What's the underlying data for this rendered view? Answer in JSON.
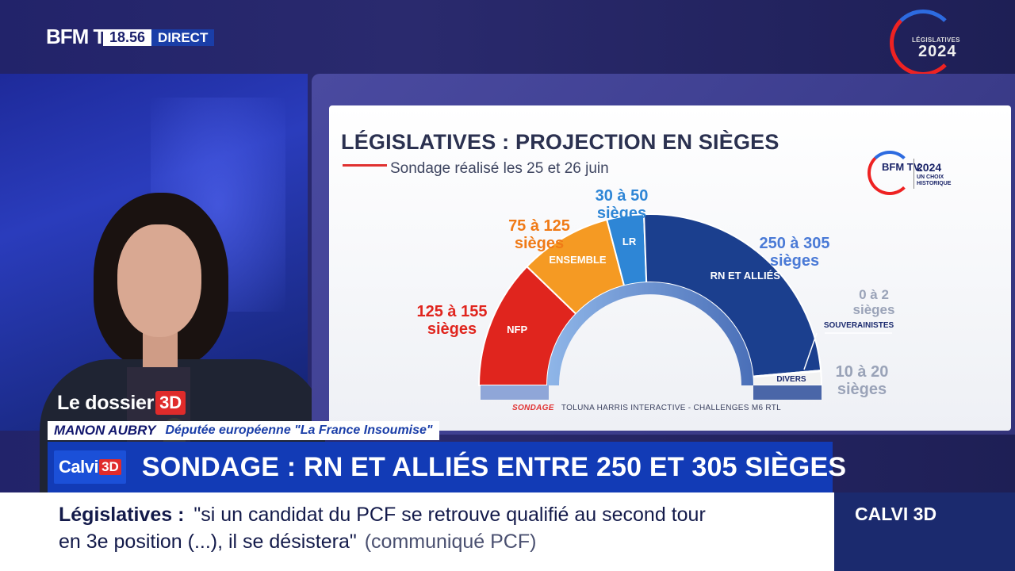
{
  "channel": {
    "logo": "BFM TV.",
    "time": "18.56",
    "live": "DIRECT",
    "elections_small": "LÉGISLATIVES",
    "elections_year": "2024"
  },
  "chart_card": {
    "title": "LÉGISLATIVES : PROJECTION EN SIÈGES",
    "subtitle": "Sondage réalisé les 25 et 26 juin",
    "badge_logo": "BFM TV.",
    "badge_year": "2024",
    "badge_caption": "UN CHOIX HISTORIQUE",
    "source_label": "SONDAGE",
    "source_text": "TOLUNA HARRIS INTERACTIVE - CHALLENGES M6 RTL"
  },
  "chart_data": {
    "type": "pie",
    "variant": "hemicycle",
    "title": "LÉGISLATIVES : PROJECTION EN SIÈGES",
    "subtitle": "Sondage réalisé les 25 et 26 juin",
    "series": [
      {
        "name": "NFP",
        "range_label_a": "125 à 155",
        "range_label_b": "sièges",
        "min": 125,
        "max": 155,
        "color": "#e0251e"
      },
      {
        "name": "ENSEMBLE",
        "range_label_a": "75 à 125",
        "range_label_b": "sièges",
        "min": 75,
        "max": 125,
        "color": "#f59a23"
      },
      {
        "name": "LR",
        "range_label_a": "30 à 50",
        "range_label_b": "sièges",
        "min": 30,
        "max": 50,
        "color": "#2e86d6"
      },
      {
        "name": "RN ET ALLIÉS",
        "range_label_a": "250 à 305",
        "range_label_b": "sièges",
        "min": 250,
        "max": 305,
        "color": "#1b3f8e"
      },
      {
        "name": "SOUVERAINISTES",
        "range_label_a": "0 à 2",
        "range_label_b": "sièges",
        "min": 0,
        "max": 2,
        "color": "#1b3f8e"
      },
      {
        "name": "DIVERS",
        "range_label_a": "10 à 20",
        "range_label_b": "sièges",
        "min": 10,
        "max": 20,
        "color": "#f2f2f2"
      }
    ]
  },
  "lower_third": {
    "dossier": "Le dossier",
    "dossier_3d": "3D",
    "name": "MANON AUBRY",
    "role": "Députée européenne \"La France Insoumise\"",
    "show": "Calvi",
    "show_3d": "3D",
    "headline": "SONDAGE : RN ET ALLIÉS ENTRE 250 ET 305 SIÈGES"
  },
  "ticker": {
    "topic": "Législatives :",
    "line1": "\"si un candidat du PCF se retrouve qualifié au second tour",
    "line2": "en 3e position (...), il se désistera\"",
    "source": "(communiqué PCF)",
    "program": "CALVI 3D"
  }
}
